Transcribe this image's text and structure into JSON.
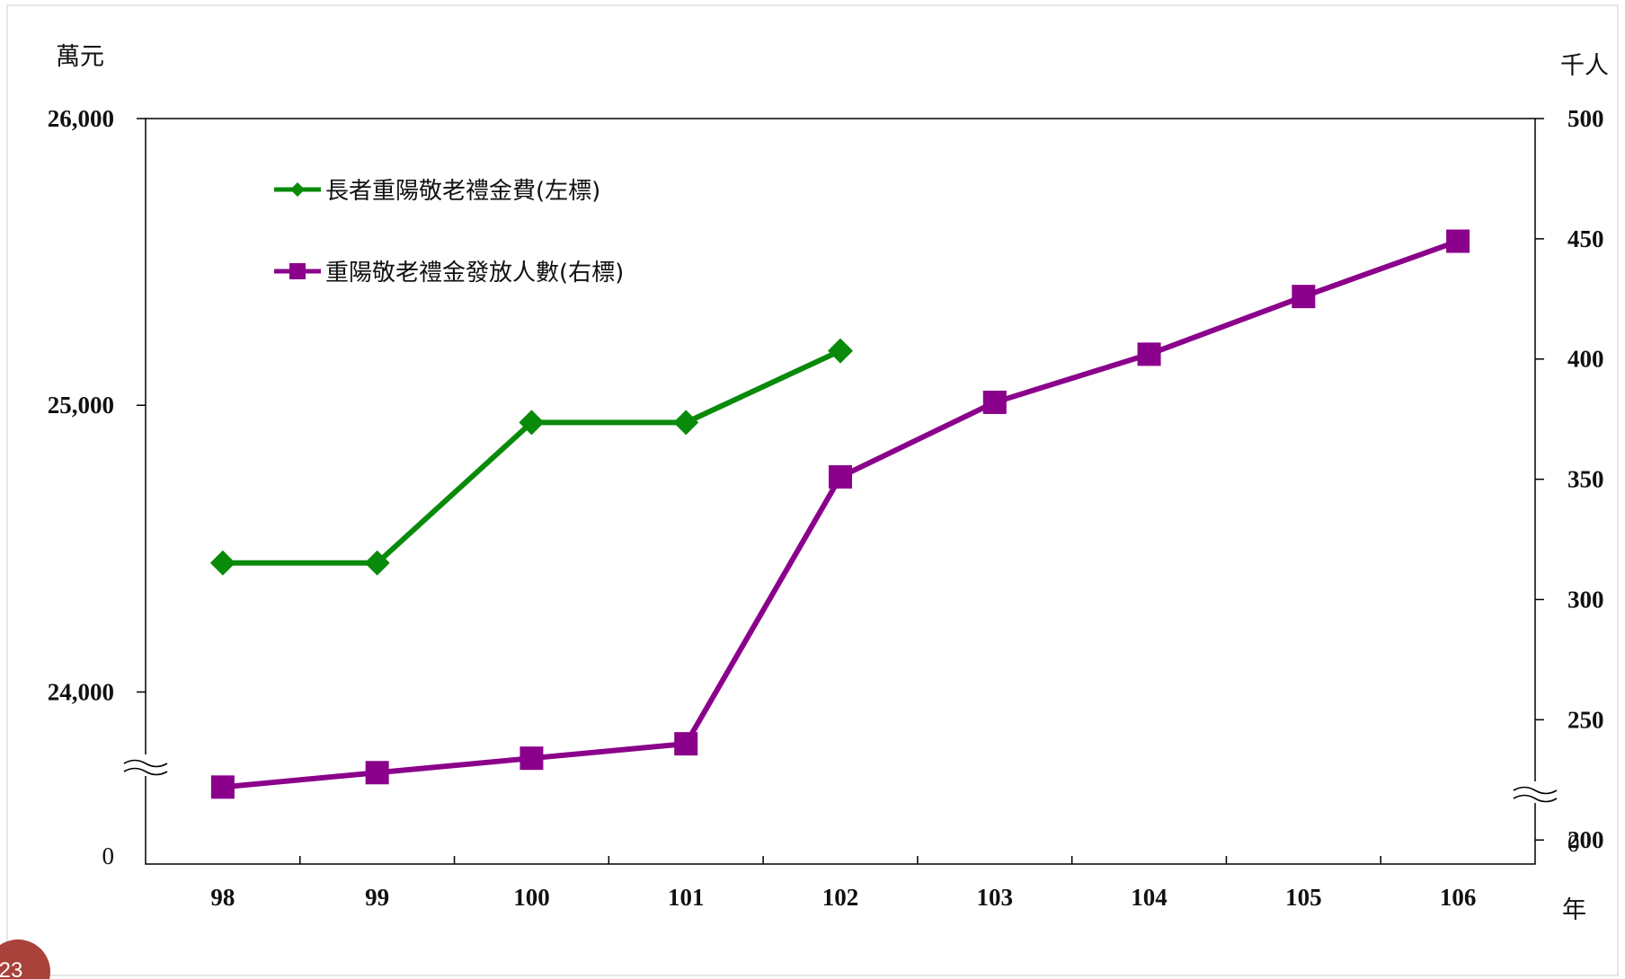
{
  "chart_data": {
    "type": "line",
    "left_axis_unit": "萬元",
    "right_axis_unit": "千人",
    "x_axis_unit": "年",
    "categories": [
      "98",
      "99",
      "100",
      "101",
      "102",
      "103",
      "104",
      "105",
      "106"
    ],
    "left_axis": {
      "ticks": [
        24000,
        25000,
        26000
      ],
      "tick_labels": [
        "24,000",
        "25,000",
        "26,000"
      ],
      "break_zero_label": "0",
      "range": [
        23400,
        26000
      ],
      "broken": true
    },
    "right_axis": {
      "ticks": [
        200,
        250,
        300,
        350,
        400,
        450,
        500
      ],
      "tick_labels": [
        "200",
        "250",
        "300",
        "350",
        "400",
        "450",
        "500"
      ],
      "break_zero_label": "0",
      "range": [
        190,
        500
      ],
      "broken": true
    },
    "series": [
      {
        "name": "長者重陽敬老禮金費(左標)",
        "axis": "left",
        "marker": "diamond",
        "color": "#0a8a0a",
        "values": [
          24450,
          24450,
          24940,
          24940,
          25190,
          null,
          null,
          null,
          null
        ]
      },
      {
        "name": "重陽敬老禮金發放人數(右標)",
        "axis": "right",
        "marker": "square",
        "color": "#8b008b",
        "values": [
          222,
          228,
          234,
          240,
          351,
          382,
          402,
          426,
          449
        ]
      }
    ],
    "grid": false,
    "legend_position": "top-left"
  },
  "page_number": "23"
}
